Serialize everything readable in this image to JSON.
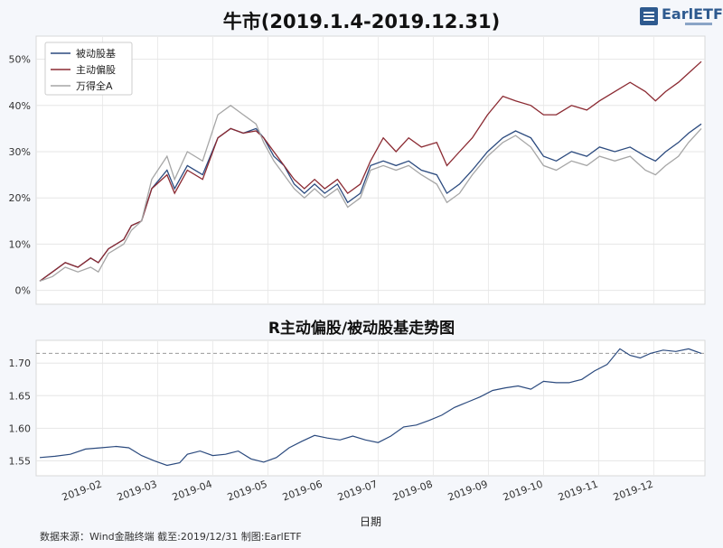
{
  "source_note": "数据来源：Wind金融终端 截至:2019/12/31 制图:EarlETF",
  "logo": {
    "text": "EarlETF"
  },
  "chart_data": [
    {
      "type": "line",
      "title": "牛市(2019.1.4-2019.12.31)",
      "ylim": [
        -0.03,
        0.55
      ],
      "yticks": [
        0,
        10,
        20,
        30,
        40,
        50
      ],
      "ytick_labels": [
        "0%",
        "10%",
        "20%",
        "30%",
        "40%",
        "50%"
      ],
      "grid": true,
      "legend_position": "top-left",
      "series": [
        {
          "name": "被动股基",
          "color": "#2b4a7e",
          "points": [
            [
              0,
              0.02
            ],
            [
              5,
              0.04
            ],
            [
              10,
              0.06
            ],
            [
              15,
              0.05
            ],
            [
              20,
              0.07
            ],
            [
              23,
              0.06
            ],
            [
              27,
              0.09
            ],
            [
              33,
              0.11
            ],
            [
              36,
              0.14
            ],
            [
              40,
              0.15
            ],
            [
              44,
              0.22
            ],
            [
              50,
              0.26
            ],
            [
              53,
              0.22
            ],
            [
              58,
              0.27
            ],
            [
              64,
              0.25
            ],
            [
              70,
              0.33
            ],
            [
              75,
              0.35
            ],
            [
              80,
              0.34
            ],
            [
              85,
              0.35
            ],
            [
              88,
              0.33
            ],
            [
              92,
              0.29
            ],
            [
              96,
              0.27
            ],
            [
              100,
              0.23
            ],
            [
              104,
              0.21
            ],
            [
              108,
              0.23
            ],
            [
              112,
              0.21
            ],
            [
              117,
              0.23
            ],
            [
              121,
              0.19
            ],
            [
              126,
              0.21
            ],
            [
              130,
              0.27
            ],
            [
              135,
              0.28
            ],
            [
              140,
              0.27
            ],
            [
              145,
              0.28
            ],
            [
              150,
              0.26
            ],
            [
              156,
              0.25
            ],
            [
              160,
              0.21
            ],
            [
              165,
              0.23
            ],
            [
              170,
              0.26
            ],
            [
              176,
              0.3
            ],
            [
              182,
              0.33
            ],
            [
              187,
              0.345
            ],
            [
              193,
              0.33
            ],
            [
              198,
              0.29
            ],
            [
              203,
              0.28
            ],
            [
              209,
              0.3
            ],
            [
              215,
              0.29
            ],
            [
              220,
              0.31
            ],
            [
              226,
              0.3
            ],
            [
              232,
              0.31
            ],
            [
              238,
              0.29
            ],
            [
              242,
              0.28
            ],
            [
              246,
              0.3
            ],
            [
              251,
              0.32
            ],
            [
              255,
              0.34
            ],
            [
              260,
              0.36
            ]
          ]
        },
        {
          "name": "主动偏股",
          "color": "#8b2a32",
          "points": [
            [
              0,
              0.02
            ],
            [
              5,
              0.04
            ],
            [
              10,
              0.06
            ],
            [
              15,
              0.05
            ],
            [
              20,
              0.07
            ],
            [
              23,
              0.06
            ],
            [
              27,
              0.09
            ],
            [
              33,
              0.11
            ],
            [
              36,
              0.14
            ],
            [
              40,
              0.15
            ],
            [
              44,
              0.22
            ],
            [
              50,
              0.25
            ],
            [
              53,
              0.21
            ],
            [
              58,
              0.26
            ],
            [
              64,
              0.24
            ],
            [
              70,
              0.33
            ],
            [
              75,
              0.35
            ],
            [
              80,
              0.34
            ],
            [
              85,
              0.345
            ],
            [
              88,
              0.33
            ],
            [
              92,
              0.3
            ],
            [
              96,
              0.27
            ],
            [
              100,
              0.24
            ],
            [
              104,
              0.22
            ],
            [
              108,
              0.24
            ],
            [
              112,
              0.22
            ],
            [
              117,
              0.24
            ],
            [
              121,
              0.21
            ],
            [
              126,
              0.23
            ],
            [
              130,
              0.28
            ],
            [
              135,
              0.33
            ],
            [
              140,
              0.3
            ],
            [
              145,
              0.33
            ],
            [
              150,
              0.31
            ],
            [
              156,
              0.32
            ],
            [
              160,
              0.27
            ],
            [
              165,
              0.3
            ],
            [
              170,
              0.33
            ],
            [
              176,
              0.38
            ],
            [
              182,
              0.42
            ],
            [
              187,
              0.41
            ],
            [
              193,
              0.4
            ],
            [
              198,
              0.38
            ],
            [
              203,
              0.38
            ],
            [
              209,
              0.4
            ],
            [
              215,
              0.39
            ],
            [
              220,
              0.41
            ],
            [
              226,
              0.43
            ],
            [
              232,
              0.45
            ],
            [
              238,
              0.43
            ],
            [
              242,
              0.41
            ],
            [
              246,
              0.43
            ],
            [
              251,
              0.45
            ],
            [
              255,
              0.47
            ],
            [
              260,
              0.495
            ]
          ]
        },
        {
          "name": "万得全A",
          "color": "#a6a6a6",
          "points": [
            [
              0,
              0.02
            ],
            [
              5,
              0.03
            ],
            [
              10,
              0.05
            ],
            [
              15,
              0.04
            ],
            [
              20,
              0.05
            ],
            [
              23,
              0.04
            ],
            [
              27,
              0.08
            ],
            [
              33,
              0.1
            ],
            [
              36,
              0.13
            ],
            [
              40,
              0.15
            ],
            [
              44,
              0.24
            ],
            [
              50,
              0.29
            ],
            [
              53,
              0.24
            ],
            [
              58,
              0.3
            ],
            [
              64,
              0.28
            ],
            [
              70,
              0.38
            ],
            [
              75,
              0.4
            ],
            [
              80,
              0.38
            ],
            [
              85,
              0.36
            ],
            [
              88,
              0.32
            ],
            [
              92,
              0.28
            ],
            [
              96,
              0.25
            ],
            [
              100,
              0.22
            ],
            [
              104,
              0.2
            ],
            [
              108,
              0.22
            ],
            [
              112,
              0.2
            ],
            [
              117,
              0.22
            ],
            [
              121,
              0.18
            ],
            [
              126,
              0.2
            ],
            [
              130,
              0.26
            ],
            [
              135,
              0.27
            ],
            [
              140,
              0.26
            ],
            [
              145,
              0.27
            ],
            [
              150,
              0.25
            ],
            [
              156,
              0.23
            ],
            [
              160,
              0.19
            ],
            [
              165,
              0.21
            ],
            [
              170,
              0.25
            ],
            [
              176,
              0.29
            ],
            [
              182,
              0.32
            ],
            [
              187,
              0.335
            ],
            [
              193,
              0.31
            ],
            [
              198,
              0.27
            ],
            [
              203,
              0.26
            ],
            [
              209,
              0.28
            ],
            [
              215,
              0.27
            ],
            [
              220,
              0.29
            ],
            [
              226,
              0.28
            ],
            [
              232,
              0.29
            ],
            [
              238,
              0.26
            ],
            [
              242,
              0.25
            ],
            [
              246,
              0.27
            ],
            [
              251,
              0.29
            ],
            [
              255,
              0.32
            ],
            [
              260,
              0.35
            ]
          ]
        }
      ]
    },
    {
      "type": "line",
      "title": "R主动偏股/被动股基走势图",
      "xlabel": "日期",
      "ylim": [
        1.527,
        1.735
      ],
      "yticks": [
        1.55,
        1.6,
        1.65,
        1.7
      ],
      "ytick_labels": [
        "1.55",
        "1.60",
        "1.65",
        "1.70"
      ],
      "reference_line": 1.715,
      "xtick_labels": [
        "2019-02",
        "2019-03",
        "2019-04",
        "2019-05",
        "2019-06",
        "2019-07",
        "2019-08",
        "2019-09",
        "2019-10",
        "2019-11",
        "2019-12"
      ],
      "series": [
        {
          "color": "#2b4a7e",
          "points": [
            [
              0,
              1.555
            ],
            [
              6,
              1.557
            ],
            [
              12,
              1.56
            ],
            [
              18,
              1.568
            ],
            [
              24,
              1.57
            ],
            [
              30,
              1.572
            ],
            [
              35,
              1.57
            ],
            [
              40,
              1.558
            ],
            [
              45,
              1.55
            ],
            [
              50,
              1.543
            ],
            [
              55,
              1.547
            ],
            [
              58,
              1.56
            ],
            [
              63,
              1.565
            ],
            [
              68,
              1.558
            ],
            [
              73,
              1.56
            ],
            [
              78,
              1.565
            ],
            [
              83,
              1.553
            ],
            [
              88,
              1.548
            ],
            [
              93,
              1.555
            ],
            [
              98,
              1.57
            ],
            [
              103,
              1.58
            ],
            [
              108,
              1.589
            ],
            [
              113,
              1.585
            ],
            [
              118,
              1.582
            ],
            [
              123,
              1.588
            ],
            [
              128,
              1.582
            ],
            [
              133,
              1.578
            ],
            [
              138,
              1.588
            ],
            [
              143,
              1.602
            ],
            [
              148,
              1.605
            ],
            [
              153,
              1.612
            ],
            [
              158,
              1.62
            ],
            [
              163,
              1.632
            ],
            [
              168,
              1.64
            ],
            [
              173,
              1.648
            ],
            [
              178,
              1.658
            ],
            [
              183,
              1.662
            ],
            [
              188,
              1.665
            ],
            [
              193,
              1.66
            ],
            [
              198,
              1.672
            ],
            [
              203,
              1.67
            ],
            [
              208,
              1.67
            ],
            [
              213,
              1.675
            ],
            [
              218,
              1.688
            ],
            [
              223,
              1.698
            ],
            [
              228,
              1.722
            ],
            [
              232,
              1.712
            ],
            [
              236,
              1.708
            ],
            [
              240,
              1.715
            ],
            [
              245,
              1.72
            ],
            [
              250,
              1.718
            ],
            [
              255,
              1.722
            ],
            [
              260,
              1.715
            ]
          ]
        }
      ]
    }
  ]
}
